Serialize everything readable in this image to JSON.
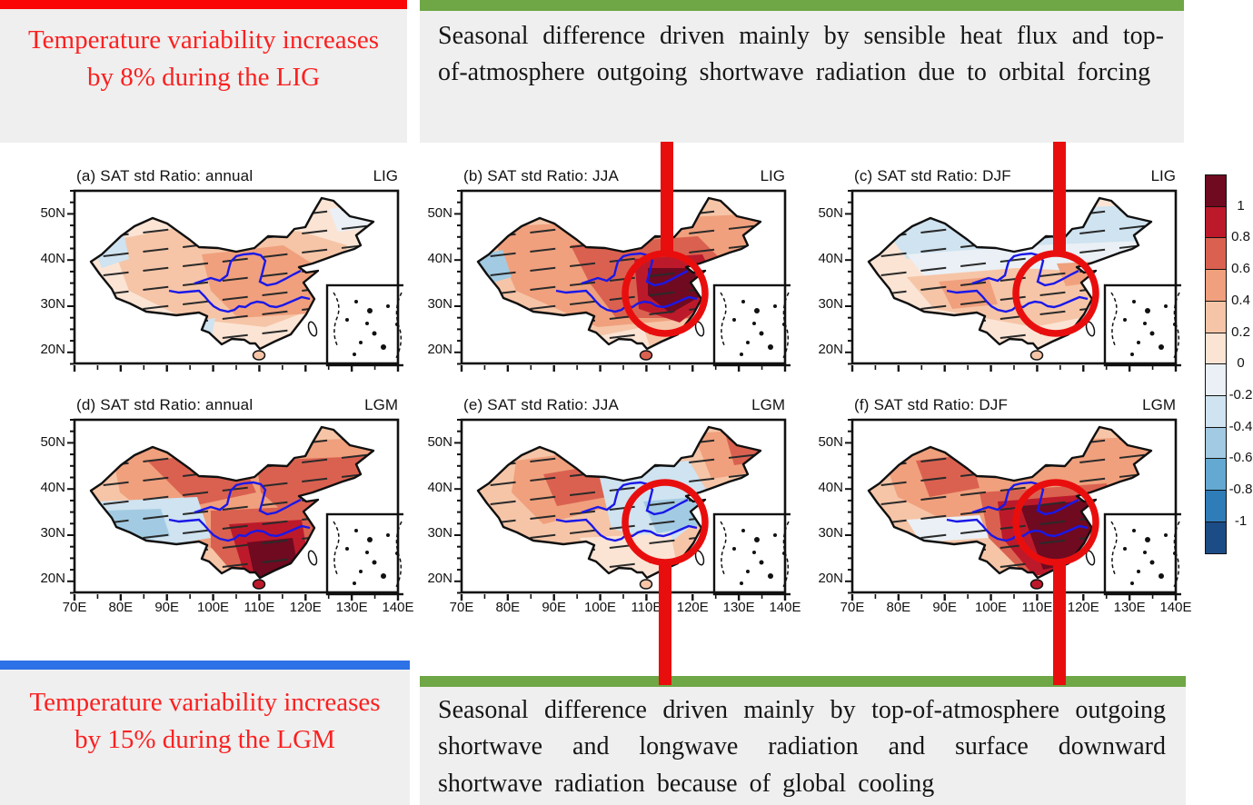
{
  "colors": {
    "background": "#ffffff",
    "box_bg": "#efefef",
    "red_bar": "#fb0606",
    "green_bar": "#6fa746",
    "blue_bar": "#2d71e6",
    "red_text": "#fb2020",
    "black_text": "#161616",
    "annotation_red": "#e90e0e",
    "river_blue": "#1a18e8",
    "map_outline": "#101010"
  },
  "callouts": {
    "top_left": {
      "accent": "red",
      "lines": [
        "Temperature variability increases",
        "by 8% during the LIG"
      ]
    },
    "top_right": {
      "accent": "green",
      "text": "Seasonal difference driven mainly by sensible heat flux and top-of-atmosphere outgoing shortwave radiation due to orbital forcing"
    },
    "bottom_left": {
      "accent": "blue",
      "lines": [
        "Temperature variability increases",
        "by 15% during the LGM"
      ]
    },
    "bottom_right": {
      "accent": "green",
      "text": "Seasonal difference driven mainly by top-of-atmosphere outgoing shortwave and longwave radiation and surface downward shortwave radiation because of global cooling"
    }
  },
  "chart_data": {
    "type": "heatmap",
    "variable": "SAT std Ratio",
    "panels": [
      {
        "id": "a",
        "title": "(a) SAT std Ratio: annual",
        "period": "LIG",
        "season": "annual",
        "circled": false,
        "shading_summary": "weak positive ratios (0 to 0.6) across most of China with stippling/hatching; small negative patches in far northwest and northeast"
      },
      {
        "id": "b",
        "title": "(b) SAT std Ratio: JJA",
        "period": "LIG",
        "season": "JJA",
        "circled": true,
        "shading_summary": "strong positive ratios (0.4 to >1) over central and eastern China, dark red core in circled east-central region; weak negative in far west"
      },
      {
        "id": "c",
        "title": "(c) SAT std Ratio: DJF",
        "period": "LIG",
        "season": "DJF",
        "circled": true,
        "shading_summary": "weak negative ratios (-0.4 to 0) across northern China, weak positive (0 to 0.6) in the circled central-southern region"
      },
      {
        "id": "d",
        "title": "(d) SAT std Ratio: annual",
        "period": "LGM",
        "season": "annual",
        "circled": false,
        "shading_summary": "positive ratios (0.4 to >1) over most of China with dark red core in the south; negative band (-0.6 to 0) over the Tibetan Plateau"
      },
      {
        "id": "e",
        "title": "(e) SAT std Ratio: JJA",
        "period": "LGM",
        "season": "JJA",
        "circled": true,
        "shading_summary": "mixed pattern: positive ratios west and northeast, negative band (-0.6 to 0) through the circled east-central region"
      },
      {
        "id": "f",
        "title": "(f) SAT std Ratio: DJF",
        "period": "LGM",
        "season": "DJF",
        "circled": true,
        "shading_summary": "strong positive ratios, very dark maroon core (>1) in the circled southeastern region; small negative patch west-central"
      }
    ],
    "lat_ticks": [
      "50N",
      "40N",
      "30N",
      "20N"
    ],
    "lon_ticks": [
      "70E",
      "80E",
      "90E",
      "100E",
      "110E",
      "120E",
      "130E",
      "140E"
    ],
    "colorbar": {
      "labels": [
        "1",
        "0.8",
        "0.6",
        "0.4",
        "0.2",
        "0",
        "-0.2",
        "-0.4",
        "-0.6",
        "-0.8",
        "-1"
      ],
      "cell_colors": [
        "#6f0a20",
        "#bc1a2b",
        "#da6150",
        "#f0a07d",
        "#f6c5a7",
        "#fbe4d4",
        "#eaf0f5",
        "#cfe3f0",
        "#a2cbe3",
        "#64a9d2",
        "#2e7cb8",
        "#1c4c86"
      ]
    },
    "annotations": {
      "circles": "thick red circles highlighting east-central China on panels b, c, e and f",
      "connectors": "thick red vertical lines linking the circled regions to the explanation boxes"
    }
  }
}
